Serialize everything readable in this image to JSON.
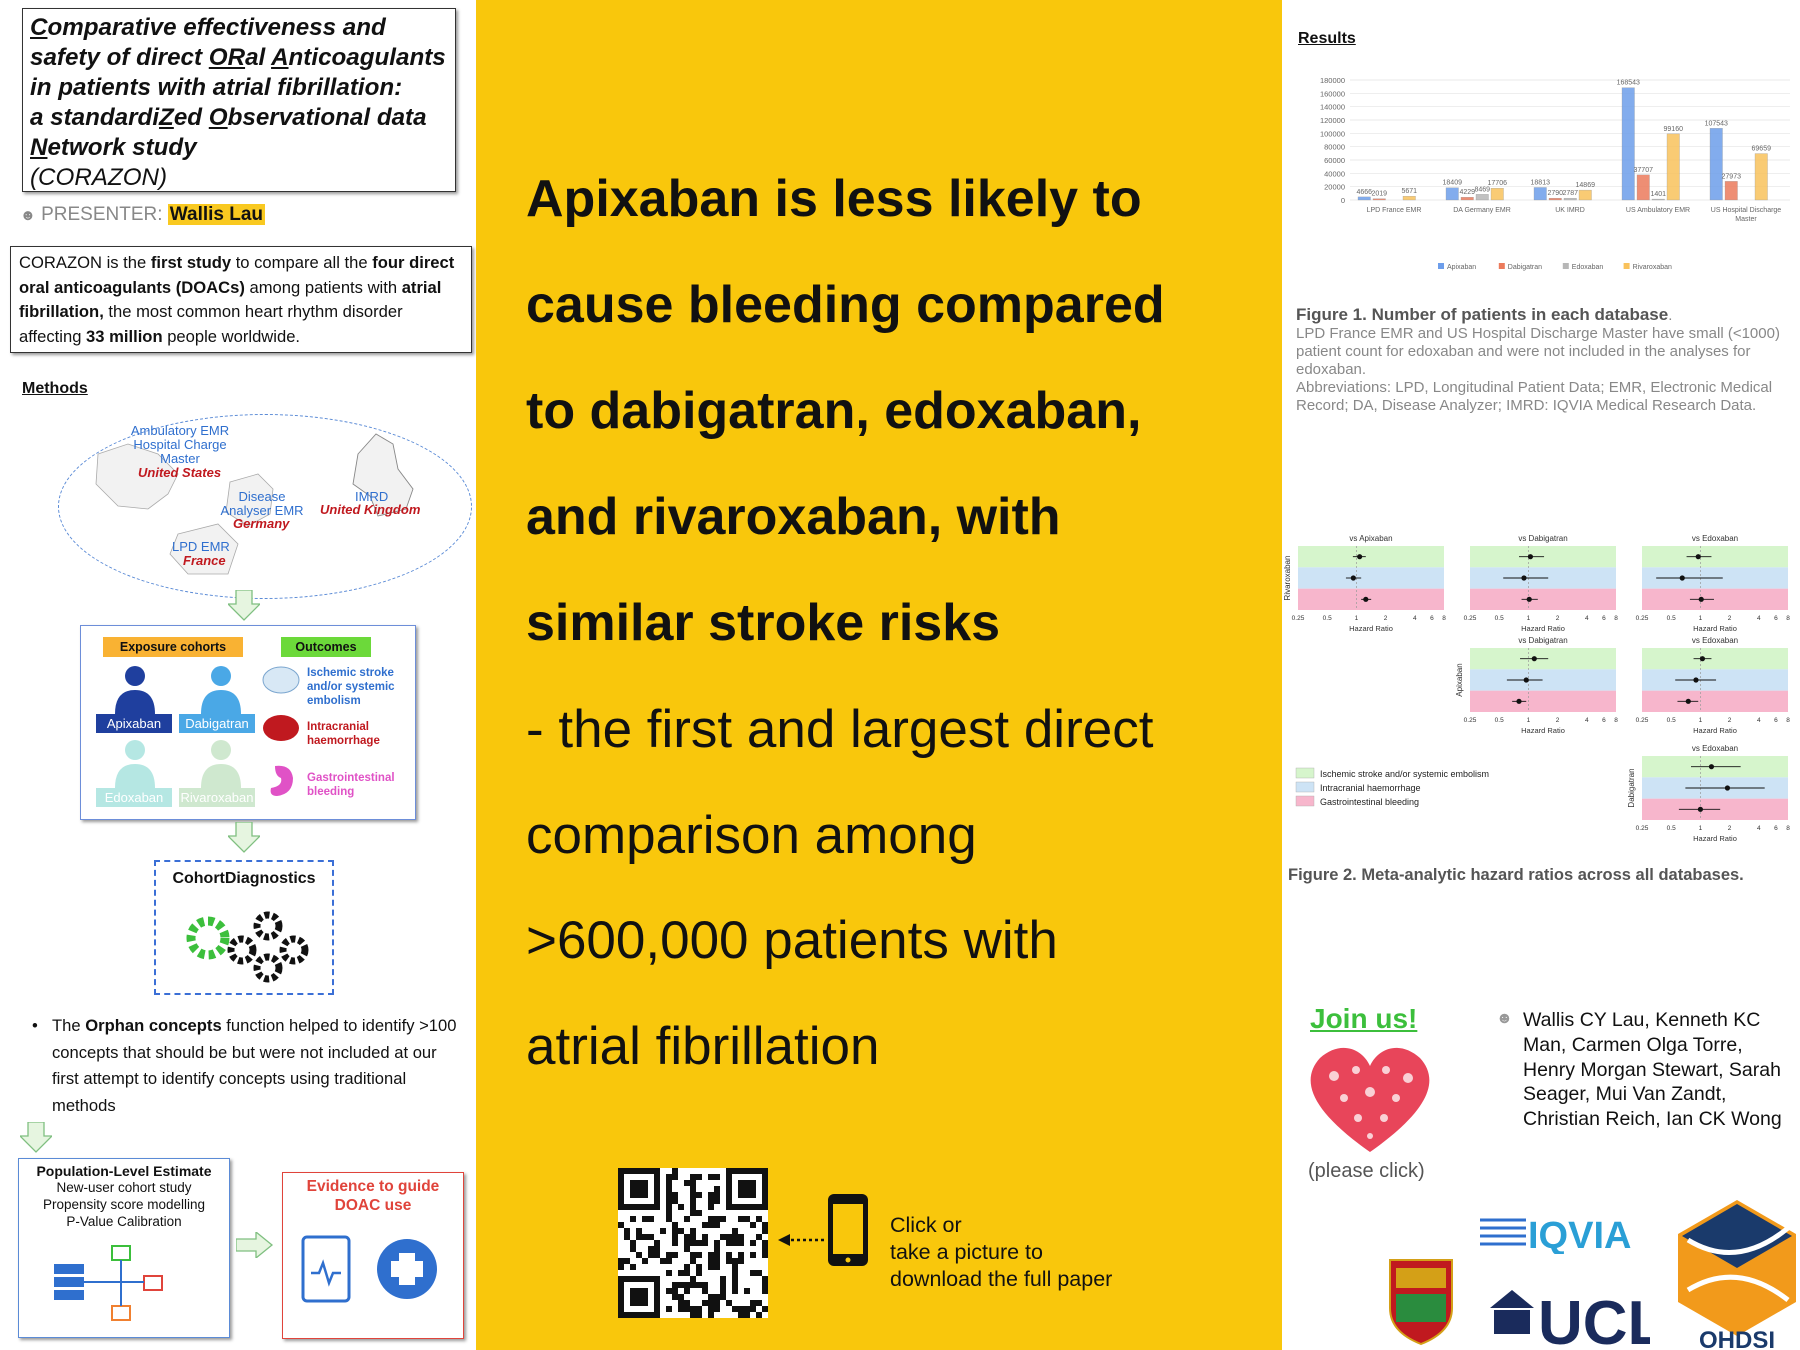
{
  "title": {
    "lines": [
      "Comparative effectiveness and",
      "safety of direct ORal Anticoagulants",
      "in patients with atrial fibrillation:",
      "a standardiZed Observational data",
      "Network study",
      "(CORAZON)"
    ]
  },
  "presenter": {
    "label": "PRESENTER:",
    "name": "Wallis Lau"
  },
  "intro": {
    "t1": "CORAZON is the ",
    "b1": "first study",
    "t2": " to compare all the ",
    "b2": "four direct oral anticoagulants (DOACs)",
    "t3": " among patients with ",
    "b3": "atrial fibrillation,",
    "t4": " the most common heart rhythm disorder affecting ",
    "b4": "33 million",
    "t5": " people worldwide."
  },
  "methods": {
    "heading": "Methods",
    "map": {
      "us_db": "Ambulatory EMR\nHospital Charge\nMaster",
      "us": "United States",
      "de_db": "Disease\nAnalyser EMR",
      "de": "Germany",
      "uk_db": "IMRD",
      "uk": "United Kingdom",
      "fr_db": "LPD EMR",
      "fr": "France"
    },
    "exposure_label": "Exposure cohorts",
    "outcomes_label": "Outcomes",
    "drugs": [
      "Apixaban",
      "Dabigatran",
      "Edoxaban",
      "Rivaroxaban"
    ],
    "outcomes": [
      "Ischemic stroke\nand/or systemic\nembolism",
      "Intracranial\nhaemorrhage",
      "Gastrointestinal\nbleeding"
    ],
    "cohort_diag": "CohortDiagnostics",
    "orphan_pre": "The ",
    "orphan_bold": "Orphan concepts",
    "orphan_post": " function helped to identify >100 concepts that should be but were not included at our first attempt to identify concepts using traditional methods",
    "ple": {
      "title": "Population-Level Estimate",
      "l1": "New-user cohort study",
      "l2": "Propensity score modelling",
      "l3": "P-Value Calibration"
    },
    "evidence": "Evidence to guide\nDOAC use"
  },
  "headline": [
    "Apixaban is less likely to",
    "cause bleeding compared",
    "to dabigatran, edoxaban,",
    "and rivaroxaban, with",
    "similar stroke risks"
  ],
  "subline": [
    "- the first and largest direct",
    "comparison among",
    ">600,000 patients with",
    "atrial fibrillation"
  ],
  "qr_text": [
    "Click or",
    "take a picture to",
    "download the full paper"
  ],
  "results": {
    "heading": "Results"
  },
  "chart_data": [
    {
      "type": "bar",
      "categories": [
        "LPD France EMR",
        "DA Germany EMR",
        "UK IMRD",
        "US Ambulatory EMR",
        "US Hospital Discharge Master"
      ],
      "series": [
        {
          "name": "Apixaban",
          "values": [
            4666,
            18409,
            18813,
            168543,
            107543
          ]
        },
        {
          "name": "Dabigatran",
          "values": [
            2019,
            4229,
            2790,
            37707,
            27973
          ]
        },
        {
          "name": "Edoxaban",
          "values": [
            null,
            8469,
            2787,
            1401,
            null
          ]
        },
        {
          "name": "Rivaroxaban",
          "values": [
            5671,
            17706,
            14869,
            99160,
            69659
          ]
        }
      ],
      "ylim": [
        0,
        180000
      ],
      "yticks": [
        "0",
        "20000",
        "40000",
        "60000",
        "80000",
        "100000",
        "120000",
        "140000",
        "160000",
        "180000"
      ],
      "legend": "bottom",
      "colors": [
        "#6d9eeb",
        "#ec7b5c",
        "#b7b7b7",
        "#f9c25c"
      ]
    },
    {
      "type": "scatter",
      "xlabel": "Hazard Ratio",
      "xticks": [
        "0.25",
        "0.5",
        "1",
        "2",
        "4",
        "6",
        "8"
      ],
      "log_x": true,
      "panels": [
        {
          "row": "Rivaroxaban",
          "title": "vs Apixaban",
          "hr": [
            1.08,
            0.93,
            1.25
          ],
          "lo": [
            0.92,
            0.78,
            1.12
          ],
          "hi": [
            1.25,
            1.12,
            1.42
          ]
        },
        {
          "row": "Rivaroxaban",
          "title": "vs Dabigatran",
          "hr": [
            1.05,
            0.9,
            1.02
          ],
          "lo": [
            0.8,
            0.55,
            0.85
          ],
          "hi": [
            1.45,
            1.6,
            1.25
          ]
        },
        {
          "row": "Rivaroxaban",
          "title": "vs Edoxaban",
          "hr": [
            0.95,
            0.65,
            1.02
          ],
          "lo": [
            0.72,
            0.35,
            0.78
          ],
          "hi": [
            1.3,
            1.7,
            1.38
          ]
        },
        {
          "row": "Apixaban",
          "title": "vs Dabigatran",
          "hr": [
            1.15,
            0.95,
            0.8
          ],
          "lo": [
            0.82,
            0.6,
            0.68
          ],
          "hi": [
            1.6,
            1.4,
            0.95
          ]
        },
        {
          "row": "Apixaban",
          "title": "vs Edoxaban",
          "hr": [
            1.05,
            0.9,
            0.75
          ],
          "lo": [
            0.85,
            0.55,
            0.58
          ],
          "hi": [
            1.3,
            1.45,
            0.95
          ]
        },
        {
          "row": "Dabigatran",
          "title": "vs Edoxaban",
          "hr": [
            1.3,
            1.9,
            1.0
          ],
          "lo": [
            0.8,
            0.7,
            0.6
          ],
          "hi": [
            2.6,
            4.6,
            1.6
          ]
        }
      ],
      "legend": [
        "Ischemic stroke and/or systemic embolism",
        "Intracranial haemorrhage",
        "Gastrointestinal bleeding"
      ],
      "colors": [
        "#d6f5cc",
        "#cde3f5",
        "#f7b6cc"
      ]
    }
  ],
  "fig1_caption": {
    "bold": "Figure 1. Number of patients in each database",
    "dot": ".",
    "l1": "LPD France EMR and US Hospital Discharge Master have small (<1000) patient count for edoxaban and were not included in the analyses for edoxaban.",
    "l2": "Abbreviations: LPD, Longitudinal Patient Data; EMR, Electronic Medical Record; DA, Disease Analyzer; IMRD: IQVIA Medical Research Data."
  },
  "fig2_caption": "Figure 2. Meta-analytic hazard ratios across all databases.",
  "join": "Join us!",
  "please": "(please click)",
  "authors": "Wallis CY Lau, Kenneth KC Man, Carmen Olga Torre, Henry Morgan Stewart, Sarah Seager, Mui Van Zandt, Christian Reich, Ian CK Wong",
  "logos": {
    "iqvia": "IQVIA",
    "ucl": "UCL",
    "ohdsi": "OHDSI"
  }
}
